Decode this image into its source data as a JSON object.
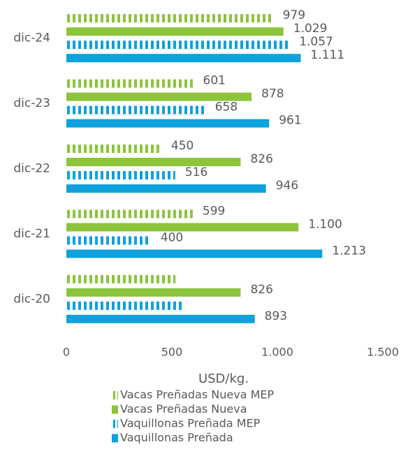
{
  "chart_data": {
    "type": "hbar",
    "categories": [
      "dic-24",
      "dic-23",
      "dic-22",
      "dic-21",
      "dic-20"
    ],
    "series": [
      {
        "name": "Vacas Preñadas Nueva MEP",
        "color": "#8cc43c",
        "striped": true,
        "values": [
          979,
          601,
          450,
          599,
          517
        ],
        "value_labels": [
          "979",
          "601",
          "450",
          "599",
          null
        ]
      },
      {
        "name": "Vacas Preñadas Nueva",
        "color": "#8cc43c",
        "striped": false,
        "values": [
          1029,
          878,
          826,
          1100,
          826
        ],
        "value_labels": [
          "1.029",
          "878",
          "826",
          "1.100",
          "826"
        ]
      },
      {
        "name": "Vaquillonas Preñada MEP",
        "color": "#0ea1dc",
        "striped": true,
        "values": [
          1057,
          658,
          516,
          400,
          550
        ],
        "value_labels": [
          "1.057",
          "658",
          "516",
          "400",
          null
        ]
      },
      {
        "name": "Vaquillonas Preñada",
        "color": "#0ea1dc",
        "striped": false,
        "values": [
          1111,
          961,
          946,
          1213,
          893
        ],
        "value_labels": [
          "1.111",
          "961",
          "946",
          "1.213",
          "893"
        ]
      }
    ],
    "xlim": [
      0,
      1500
    ],
    "xticks": [
      0,
      500,
      {
        "value": 1000,
        "label": "1.000"
      },
      {
        "value": 1500,
        "label": "1.500"
      }
    ],
    "xlabel": "USD/kg."
  }
}
